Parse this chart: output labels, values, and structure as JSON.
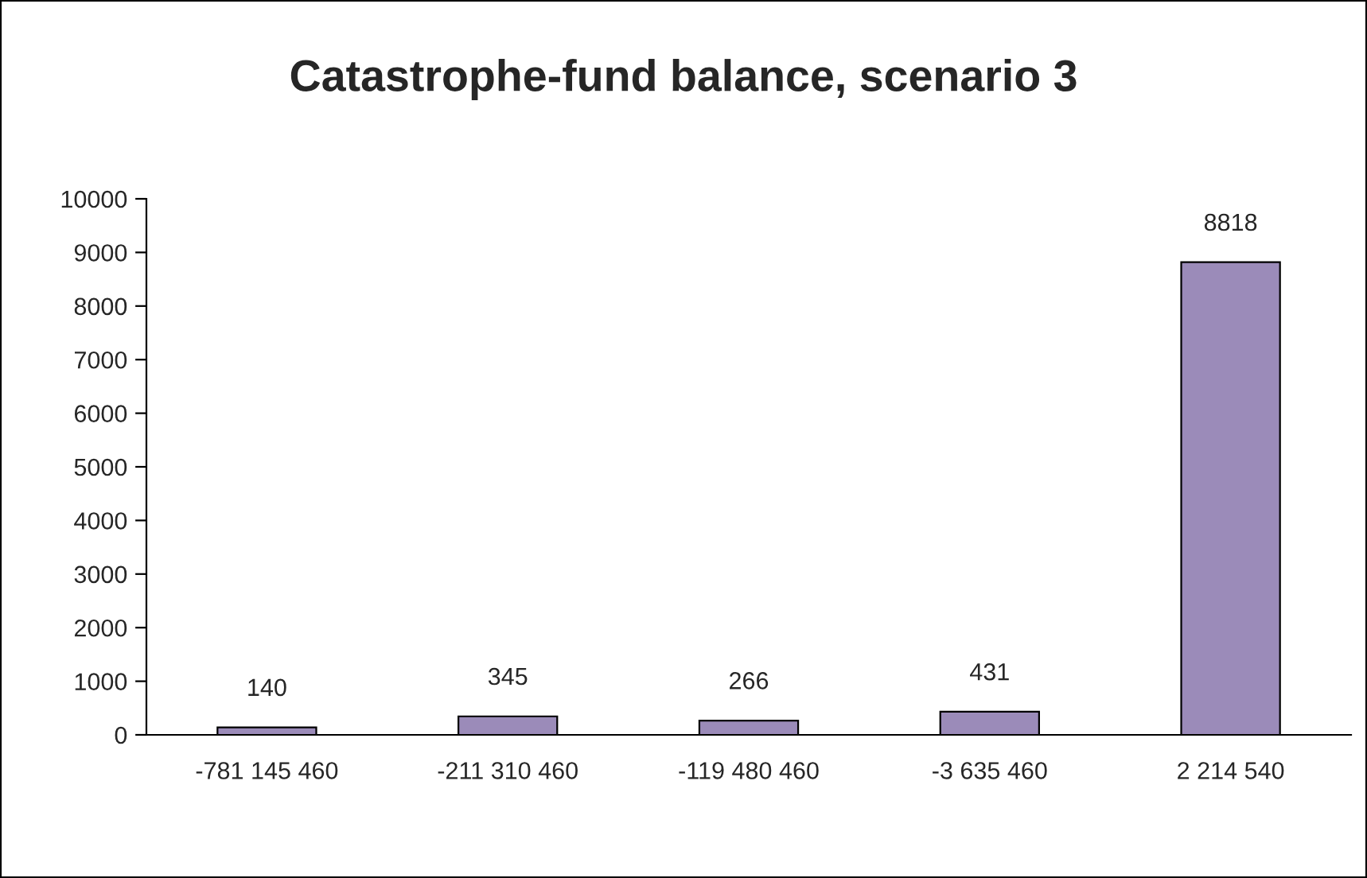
{
  "chart_data": {
    "type": "bar",
    "title": "Catastrophe-fund balance, scenario 3",
    "categories": [
      "-781 145 460",
      "-211 310 460",
      "-119 480 460",
      "-3 635 460",
      "2 214 540"
    ],
    "values": [
      140,
      345,
      266,
      431,
      8818
    ],
    "color": "#9b8bb9",
    "ylim": [
      0,
      10000
    ],
    "yticks": [
      0,
      1000,
      2000,
      3000,
      4000,
      5000,
      6000,
      7000,
      8000,
      9000,
      10000
    ],
    "grid": false,
    "data_labels": true
  }
}
